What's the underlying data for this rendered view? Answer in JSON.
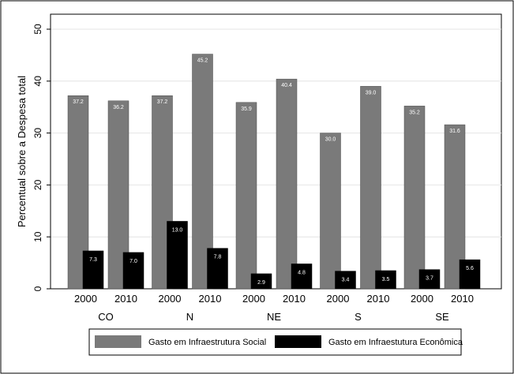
{
  "chart_data": {
    "type": "bar",
    "title": "",
    "ylabel": "Percentual sobre a Despesa total",
    "xlabel": "",
    "ylim": [
      0,
      50
    ],
    "yticks": [
      0,
      10,
      20,
      30,
      40,
      50
    ],
    "grid": true,
    "legend_position": "bottom",
    "groups": [
      "CO",
      "N",
      "NE",
      "S",
      "SE"
    ],
    "categories": [
      "2000",
      "2010"
    ],
    "series": [
      {
        "name": "Gasto em Infraestrutura Social",
        "color": "#7a7a7a",
        "label_color": "#ffffff",
        "values": [
          [
            37.2,
            36.2
          ],
          [
            37.2,
            45.2
          ],
          [
            35.9,
            40.4
          ],
          [
            30.0,
            39.0
          ],
          [
            35.2,
            31.6
          ]
        ],
        "labels": [
          [
            "37.2",
            "36.2"
          ],
          [
            "37.2",
            "45.2"
          ],
          [
            "35.9",
            "40.4"
          ],
          [
            "30.0",
            "39.0"
          ],
          [
            "35.2",
            "31.6"
          ]
        ]
      },
      {
        "name": "Gasto em Infraestutura Econômica",
        "color": "#000000",
        "label_color": "#ffffff",
        "values": [
          [
            7.3,
            7.0
          ],
          [
            13.0,
            7.8
          ],
          [
            2.9,
            4.8
          ],
          [
            3.4,
            3.5
          ],
          [
            3.7,
            5.6
          ]
        ],
        "labels": [
          [
            "7.3",
            "7.0"
          ],
          [
            "13.0",
            "7.8"
          ],
          [
            "2.9",
            "4.8"
          ],
          [
            "3.4",
            "3.5"
          ],
          [
            "3.7",
            "5.6"
          ]
        ]
      }
    ]
  }
}
